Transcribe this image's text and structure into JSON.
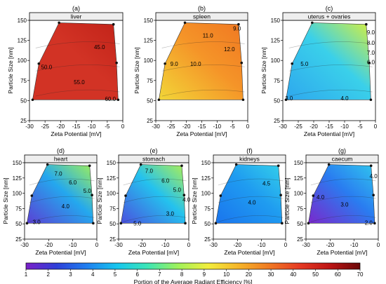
{
  "figure": {
    "colorbar": {
      "label": "Portion of the Average Radiant Efficiency [%]",
      "ticks": [
        1,
        2,
        3,
        4,
        5,
        6,
        7,
        8,
        9,
        10,
        20,
        30,
        40,
        50,
        60,
        70
      ],
      "colors": [
        "#7b1fc8",
        "#2f3fd8",
        "#1f7ff0",
        "#16c6ee",
        "#3ce6b6",
        "#9ff25a",
        "#f2ee3c",
        "#f6b528",
        "#f07a22",
        "#e63a22",
        "#bd1414",
        "#6a0808"
      ]
    },
    "sample_points": [
      [
        -29,
        51
      ],
      [
        -27,
        96
      ],
      [
        -20.5,
        147
      ],
      [
        -3,
        145
      ],
      [
        -2,
        97
      ],
      [
        -1.5,
        51
      ]
    ]
  },
  "chart_data": [
    {
      "panel": "(a)",
      "title": "liver",
      "type": "heatmap",
      "xlabel": "Zeta Potential [mV]",
      "ylabel": "Particle Size [nm]",
      "xlim": [
        -30,
        0
      ],
      "ylim": [
        25,
        150
      ],
      "xticks": [
        -30,
        -25,
        -20,
        -15,
        -10,
        -5,
        0
      ],
      "yticks": [
        25,
        50,
        75,
        100,
        125,
        150
      ],
      "contour_labels": [
        {
          "text": "45.0",
          "x": -7.5,
          "y": 117
        },
        {
          "text": "50.0",
          "x": -24.5,
          "y": 92
        },
        {
          "text": "55.0",
          "x": -14,
          "y": 73
        },
        {
          "text": "60.0",
          "x": -4,
          "y": 52
        }
      ],
      "fill": "#d23325",
      "fill_hi": "#c22319"
    },
    {
      "panel": "(b)",
      "title": "spleen",
      "type": "heatmap",
      "xlabel": "Zeta Potential [mV]",
      "ylabel": "Particle Size [nm]",
      "xlim": [
        -30,
        0
      ],
      "ylim": [
        25,
        150
      ],
      "xticks": [
        -30,
        -25,
        -20,
        -15,
        -10,
        -5,
        0
      ],
      "yticks": [
        25,
        50,
        75,
        100,
        125,
        150
      ],
      "contour_labels": [
        {
          "text": "9.0",
          "x": -24,
          "y": 96
        },
        {
          "text": "10.0",
          "x": -17,
          "y": 96
        },
        {
          "text": "11.0",
          "x": -13,
          "y": 131
        },
        {
          "text": "12.0",
          "x": -6,
          "y": 114
        },
        {
          "text": "9.0",
          "x": -3.5,
          "y": 140
        }
      ],
      "fill": "#f59428",
      "fill_lo": "#f2d638",
      "fill_hi": "#f07822"
    },
    {
      "panel": "(c)",
      "title": "uterus + ovaries",
      "type": "heatmap",
      "xlabel": "Zeta Potential [mV]",
      "ylabel": "Particle Size [nm]",
      "xlim": [
        -30,
        0
      ],
      "ylim": [
        25,
        150
      ],
      "xticks": [
        -30,
        -25,
        -20,
        -15,
        -10,
        -5,
        0
      ],
      "yticks": [
        25,
        50,
        75,
        100,
        125,
        150
      ],
      "contour_labels": [
        {
          "text": "9.0",
          "x": -1.5,
          "y": 135
        },
        {
          "text": "8.0",
          "x": -1.5,
          "y": 122
        },
        {
          "text": "7.0",
          "x": -1.5,
          "y": 110
        },
        {
          "text": "6.0",
          "x": -1.5,
          "y": 98
        },
        {
          "text": "5.0",
          "x": -23,
          "y": 96
        },
        {
          "text": "4.0",
          "x": -10,
          "y": 53
        },
        {
          "text": "3.0",
          "x": -28,
          "y": 53
        }
      ],
      "fill": "#3ad0ea",
      "fill_lo": "#2ea7ee",
      "fill_hi": "#d6ef3e"
    },
    {
      "panel": "(d)",
      "title": "heart",
      "type": "heatmap",
      "xlabel": "Zeta Potential [mV]",
      "ylabel": "Particle Size [nm]",
      "xlim": [
        -30,
        0
      ],
      "ylim": [
        25,
        150
      ],
      "xticks": [
        -30,
        -20,
        -10,
        0
      ],
      "yticks": [
        25,
        50,
        75,
        100,
        125,
        150
      ],
      "contour_labels": [
        {
          "text": "7.0",
          "x": -16,
          "y": 132
        },
        {
          "text": "6.0",
          "x": -10,
          "y": 118
        },
        {
          "text": "5.0",
          "x": -4,
          "y": 104
        },
        {
          "text": "4.0",
          "x": -13,
          "y": 79
        },
        {
          "text": "3.0",
          "x": -25,
          "y": 53
        }
      ],
      "fill": "#24a8ee",
      "fill_lo": "#5a40d4",
      "fill_hi": "#9ef05a"
    },
    {
      "panel": "(e)",
      "title": "stomach",
      "type": "heatmap",
      "xlabel": "Zeta Potential [mV]",
      "ylabel": "Particle Size [nm]",
      "xlim": [
        -30,
        0
      ],
      "ylim": [
        25,
        150
      ],
      "xticks": [
        -30,
        -20,
        -10,
        0
      ],
      "yticks": [
        25,
        50,
        75,
        100,
        125,
        150
      ],
      "contour_labels": [
        {
          "text": "7.0",
          "x": -17,
          "y": 137
        },
        {
          "text": "6.0",
          "x": -10,
          "y": 121
        },
        {
          "text": "5.0",
          "x": -5,
          "y": 106
        },
        {
          "text": "4.0",
          "x": -1,
          "y": 90
        },
        {
          "text": "3.0",
          "x": -8,
          "y": 67
        },
        {
          "text": "5.0",
          "x": -22,
          "y": 51
        }
      ],
      "fill": "#24c2ee",
      "fill_lo": "#4a50de",
      "fill_hi": "#aef052"
    },
    {
      "panel": "(f)",
      "title": "kidneys",
      "type": "heatmap",
      "xlabel": "Zeta Potential [mV]",
      "ylabel": "Particle Size [nm]",
      "xlim": [
        -30,
        0
      ],
      "ylim": [
        25,
        150
      ],
      "xticks": [
        -30,
        -20,
        -10,
        0
      ],
      "yticks": [
        25,
        50,
        75,
        100,
        125,
        150
      ],
      "contour_labels": [
        {
          "text": "4.5",
          "x": -8,
          "y": 116
        },
        {
          "text": "4.0",
          "x": -14,
          "y": 85
        }
      ],
      "fill": "#1f9cf0",
      "fill_lo": "#1a74ee",
      "fill_hi": "#34d0ea"
    },
    {
      "panel": "(g)",
      "title": "caecum",
      "type": "heatmap",
      "xlabel": "Zeta Potential [mV]",
      "ylabel": "Particle Size [nm]",
      "xlim": [
        -30,
        0
      ],
      "ylim": [
        25,
        150
      ],
      "xticks": [
        -30,
        -20,
        -10,
        0
      ],
      "yticks": [
        25,
        50,
        75,
        100,
        125,
        150
      ],
      "contour_labels": [
        {
          "text": "4.0",
          "x": -2,
          "y": 128
        },
        {
          "text": "4.0",
          "x": -24,
          "y": 94
        },
        {
          "text": "3.0",
          "x": -14,
          "y": 82
        },
        {
          "text": "2.0",
          "x": -4,
          "y": 52
        }
      ],
      "fill": "#2a7cf0",
      "fill_lo": "#7a28cc",
      "fill_hi": "#30c6ee"
    }
  ]
}
